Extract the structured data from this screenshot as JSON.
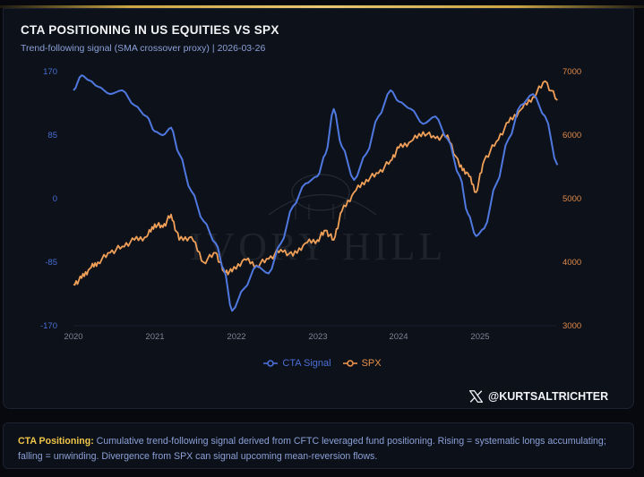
{
  "header": {
    "title": "CTA POSITIONING IN US EQUITIES VS SPX",
    "subtitle_left": "Trend-following signal (SMA crossover proxy)",
    "subtitle_sep": "|",
    "subtitle_date": "2026-03-26"
  },
  "watermark": "IVORY HILL",
  "colors": {
    "cta": "#4f78e0",
    "spx": "#f0a058",
    "background": "#0d1119",
    "accent_gold": "#e8c870",
    "note_label": "#f0c64a"
  },
  "legend": {
    "cta_label": "CTA Signal",
    "spx_label": "SPX"
  },
  "handle": {
    "icon": "x-logo-icon",
    "text": "@KURTSALTRICHTER"
  },
  "note": {
    "label": "CTA Positioning:",
    "text": " Cumulative trend-following signal derived from CFTC leveraged fund positioning. Rising = systematic longs accumulating; falling = unwinding. Divergence from SPX can signal upcoming mean-reversion flows."
  },
  "chart_data": {
    "type": "line",
    "title": "CTA POSITIONING IN US EQUITIES VS SPX",
    "subtitle": "Trend-following signal (SMA crossover proxy) | 2026-03-26",
    "xlabel": "",
    "x_ticks": [
      "2020",
      "2021",
      "2022",
      "2023",
      "2024",
      "2025"
    ],
    "y_left": {
      "label": "CTA Signal",
      "ticks": [
        170,
        85,
        0,
        -85,
        -170
      ],
      "range": [
        -170,
        170
      ]
    },
    "y_right": {
      "label": "SPX",
      "ticks": [
        7000,
        6000,
        5000,
        4000,
        3000
      ],
      "range": [
        3000,
        7000
      ]
    },
    "grid": false,
    "legend_position": "bottom-center",
    "x": [
      2020.0,
      2020.1,
      2020.2,
      2020.3,
      2020.45,
      2020.6,
      2020.75,
      2020.9,
      2021.0,
      2021.1,
      2021.2,
      2021.3,
      2021.45,
      2021.6,
      2021.75,
      2021.85,
      2021.95,
      2022.1,
      2022.25,
      2022.4,
      2022.55,
      2022.7,
      2022.85,
      2023.0,
      2023.1,
      2023.2,
      2023.3,
      2023.45,
      2023.6,
      2023.75,
      2023.9,
      2024.0,
      2024.15,
      2024.3,
      2024.45,
      2024.6,
      2024.75,
      2024.85,
      2024.95,
      2025.05,
      2025.2,
      2025.35,
      2025.5,
      2025.65,
      2025.8,
      2025.95
    ],
    "series": [
      {
        "name": "CTA Signal",
        "axis": "left",
        "values": [
          145,
          165,
          158,
          150,
          140,
          145,
          125,
          110,
          90,
          85,
          95,
          60,
          10,
          -30,
          -60,
          -95,
          -150,
          -120,
          -90,
          -100,
          -60,
          -10,
          20,
          30,
          60,
          120,
          70,
          25,
          60,
          110,
          145,
          130,
          120,
          100,
          110,
          80,
          30,
          -20,
          -50,
          -40,
          20,
          80,
          125,
          140,
          110,
          45
        ],
        "color": "#4f78e0"
      },
      {
        "name": "SPX",
        "axis": "right",
        "values": [
          3650,
          3750,
          3900,
          4000,
          4150,
          4250,
          4350,
          4400,
          4600,
          4550,
          4750,
          4350,
          4400,
          4000,
          4150,
          3850,
          3850,
          4050,
          3950,
          4050,
          4200,
          4100,
          4300,
          4350,
          4500,
          4350,
          4800,
          5100,
          5300,
          5400,
          5600,
          5800,
          5900,
          6050,
          5950,
          6000,
          5500,
          5400,
          5100,
          5600,
          5900,
          6200,
          6400,
          6600,
          6850,
          6550
        ],
        "color": "#f0a058"
      }
    ]
  }
}
